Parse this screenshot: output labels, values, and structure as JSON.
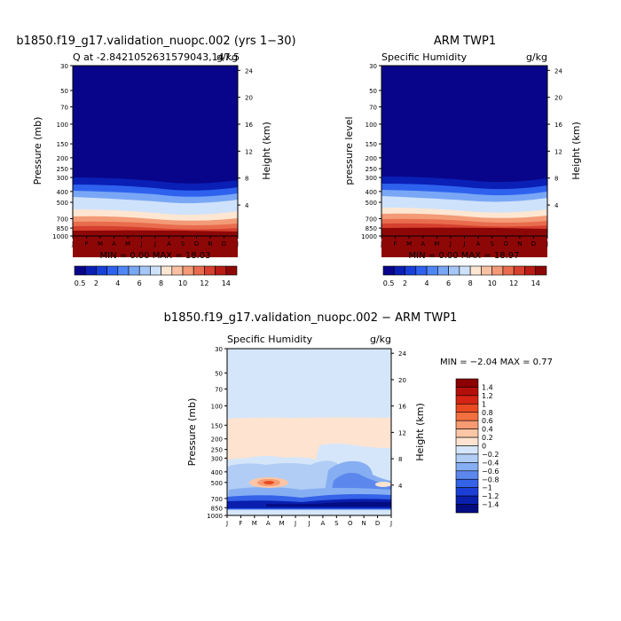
{
  "chart_data": [
    {
      "type": "heatmap",
      "title": "b1850.f19_g17.validation_nuopc.002 (yrs 1−30)",
      "left_label": "Q at -2.8421052631579043,147.5",
      "right_label": "g/kg",
      "xlabel": "",
      "ylabel": "Pressure (mb)",
      "y2label": "Height (km)",
      "x_ticks": [
        "J",
        "F",
        "M",
        "A",
        "M",
        "J",
        "J",
        "A",
        "S",
        "O",
        "N",
        "D",
        "J"
      ],
      "y_ticks": [
        "30",
        "50",
        "70",
        "100",
        "150",
        "200",
        "250",
        "300",
        "400",
        "500",
        "700",
        "850",
        "1000"
      ],
      "y2_ticks": [
        "24",
        "20",
        "16",
        "12",
        "8",
        "4"
      ],
      "stats": "MIN =     0.00 MAX =   18.03",
      "colorbar_labels": [
        "0.5",
        "2",
        "4",
        "6",
        "8",
        "10",
        "12",
        "14"
      ],
      "colorbar_levels": [
        0.5,
        1,
        2,
        3,
        4,
        5,
        6,
        7,
        8,
        9,
        10,
        11,
        12,
        13,
        14
      ],
      "colors": [
        "#08058a",
        "#0a1fb5",
        "#1840d8",
        "#2e62ee",
        "#4f86f5",
        "#7aa7f5",
        "#a5c6f7",
        "#cfe2fb",
        "#fde6d2",
        "#f8c1a3",
        "#f39a76",
        "#e86c4d",
        "#d6402e",
        "#b81c14",
        "#8e0707"
      ]
    },
    {
      "type": "heatmap",
      "title": "ARM TWP1",
      "left_label": "Specific Humidity",
      "right_label": "g/kg",
      "xlabel": "",
      "ylabel": "pressure level",
      "y2label": "Height (km)",
      "x_ticks": [
        "J",
        "F",
        "M",
        "A",
        "M",
        "J",
        "J",
        "A",
        "S",
        "O",
        "N",
        "D",
        "J"
      ],
      "y_ticks": [
        "30",
        "50",
        "70",
        "100",
        "150",
        "200",
        "250",
        "300",
        "400",
        "500",
        "700",
        "850",
        "1000"
      ],
      "y2_ticks": [
        "24",
        "20",
        "16",
        "12",
        "8",
        "4"
      ],
      "stats": "MIN =     0.00 MAX =   18.97",
      "colorbar_labels": [
        "0.5",
        "2",
        "4",
        "6",
        "8",
        "10",
        "12",
        "14"
      ],
      "colorbar_levels": [
        0.5,
        1,
        2,
        3,
        4,
        5,
        6,
        7,
        8,
        9,
        10,
        11,
        12,
        13,
        14
      ]
    },
    {
      "type": "heatmap",
      "title": "b1850.f19_g17.validation_nuopc.002 − ARM TWP1",
      "left_label": "Specific Humidity",
      "right_label": "g/kg",
      "xlabel": "",
      "ylabel": "Pressure (mb)",
      "y2label": "Height (km)",
      "x_ticks": [
        "J",
        "F",
        "M",
        "A",
        "M",
        "J",
        "J",
        "A",
        "S",
        "O",
        "N",
        "D",
        "J"
      ],
      "y_ticks": [
        "30",
        "50",
        "70",
        "100",
        "150",
        "200",
        "250",
        "300",
        "400",
        "500",
        "700",
        "850",
        "1000"
      ],
      "y2_ticks": [
        "24",
        "20",
        "16",
        "12",
        "8",
        "4"
      ],
      "stats": "MIN =   −2.04 MAX =     0.77",
      "colorbar_labels": [
        "1.4",
        "1.2",
        "1",
        "0.8",
        "0.6",
        "0.4",
        "0.2",
        "0",
        "−0.2",
        "−0.4",
        "−0.6",
        "−0.8",
        "−1",
        "−1.2",
        "−1.4"
      ],
      "colorbar_levels": [
        1.4,
        1.2,
        1,
        0.8,
        0.6,
        0.4,
        0.2,
        0,
        -0.2,
        -0.4,
        -0.6,
        -0.8,
        -1,
        -1.2,
        -1.4
      ],
      "colors": [
        "#8b0000",
        "#b50f0a",
        "#d52413",
        "#ea4a22",
        "#f46f3f",
        "#f89a72",
        "#fbc6a5",
        "#fde3d0",
        "#d5e6fa",
        "#b1cdf5",
        "#86aef2",
        "#5c88ee",
        "#3462e8",
        "#1b3fd6",
        "#0a1fae",
        "#040c82"
      ]
    }
  ]
}
